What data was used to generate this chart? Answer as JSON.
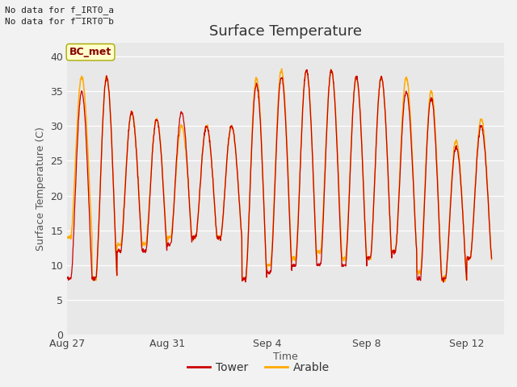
{
  "title": "Surface Temperature",
  "xlabel": "Time",
  "ylabel": "Surface Temperature (C)",
  "ylim": [
    0,
    42
  ],
  "yticks": [
    0,
    5,
    10,
    15,
    20,
    25,
    30,
    35,
    40
  ],
  "background_color": "#e8e8e8",
  "figure_color": "#f2f2f2",
  "tower_color": "#cc0000",
  "arable_color": "#ffaa00",
  "legend_entries": [
    "Tower",
    "Arable"
  ],
  "top_left_text1": "No data for f_IRT0_a",
  "top_left_text2": "No data for f̅IRT0̅b",
  "bc_met_label": "BC_met",
  "bc_met_bg": "#ffffcc",
  "bc_met_border": "#aaaa00",
  "bc_met_text_color": "#880000",
  "x_tick_labels": [
    "Aug 27",
    "Aug 31",
    "Sep 4",
    "Sep 8",
    "Sep 12"
  ],
  "x_tick_days": [
    0,
    4,
    8,
    12,
    16
  ],
  "title_fontsize": 13,
  "axis_label_fontsize": 9,
  "tick_fontsize": 9,
  "total_days": 17.5
}
